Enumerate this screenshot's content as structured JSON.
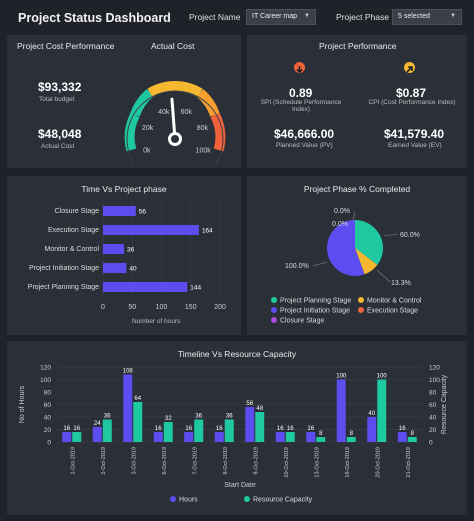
{
  "header": {
    "title": "Project Status Dashboard",
    "project_name_label": "Project Name",
    "project_name_value": "IT Career map",
    "project_phase_label": "Project Phase",
    "project_phase_value": "5 selected"
  },
  "cost_panel": {
    "title": "Project Cost Performance",
    "actual_cost_title": "Actual Cost",
    "total_budget_value": "$93,332",
    "total_budget_label": "Total budget",
    "actual_cost_value": "$48,048",
    "actual_cost_label": "Actual Cost",
    "gauge_ticks": [
      "0k",
      "20k",
      "40k",
      "60k",
      "80k",
      "100k"
    ],
    "gauge_fraction": 0.48
  },
  "performance_panel": {
    "title": "Project Performance",
    "spi_value": "0.89",
    "spi_label": "SPI (Schedule Performance Index)",
    "cpi_value": "$0.87",
    "cpi_label": "CPI (Cost Performance Index)",
    "pv_value": "$46,666.00",
    "pv_label": "Planned Value (PV)",
    "ev_value": "$41,579.40",
    "ev_label": "Earned Value (EV)"
  },
  "time_chart": {
    "title": "Time Vs Project phase",
    "xlabel": "Number of hours",
    "xticks": [
      "0",
      "50",
      "100",
      "150",
      "200"
    ]
  },
  "pie_chart": {
    "title": "Project Phase % Completed"
  },
  "timeline_chart": {
    "title": "Timeline Vs Resource Capacity",
    "ylabel_left": "No of Hours",
    "ylabel_right": "Resource Capacity",
    "xlabel": "Start Date",
    "yticks": [
      "0",
      "20",
      "40",
      "60",
      "80",
      "100",
      "120"
    ],
    "legend_hours": "Hours",
    "legend_capacity": "Resource Capacity"
  },
  "chart_data": [
    {
      "type": "bar",
      "orientation": "horizontal",
      "title": "Time Vs Project phase",
      "xlabel": "Number of hours",
      "xlim": [
        0,
        200
      ],
      "categories": [
        "Closure Stage",
        "Execution Stage",
        "Monitor & Control",
        "Project Initiation Stage",
        "Project Planning Stage"
      ],
      "values": [
        56,
        164,
        36,
        40,
        144
      ],
      "color": "#5b4df0"
    },
    {
      "type": "pie",
      "title": "Project Phase % Completed",
      "labels": [
        "Project Planning Stage",
        "Monitor & Control",
        "Project Initiation Stage",
        "Execution Stage",
        "Closure Stage"
      ],
      "values": [
        60.0,
        13.3,
        100.0,
        0.0,
        0.0
      ],
      "slice_labels": [
        "60.0%",
        "13.3%",
        "100.0%",
        "0.0%",
        "0.0%"
      ],
      "colors": [
        "#1ec8a0",
        "#f5b82e",
        "#5b4df0",
        "#f0623a",
        "#b04ae0"
      ]
    },
    {
      "type": "bar",
      "title": "Timeline Vs Resource Capacity",
      "xlabel": "Start Date",
      "ylabel": "No of Hours",
      "ylim": [
        0,
        120
      ],
      "categories": [
        "1-Oct-2019",
        "2-Oct-2019",
        "3-Oct-2019",
        "6-Oct-2019",
        "7-Oct-2019",
        "8-Oct-2019",
        "9-Oct-2019",
        "10-Oct-2019",
        "13-Oct-2019",
        "16-Oct-2019",
        "20-Oct-2019",
        "21-Oct-2019"
      ],
      "series": [
        {
          "name": "Hours",
          "color": "#5b4df0",
          "values": [
            16,
            24,
            108,
            16,
            16,
            16,
            56,
            16,
            16,
            100,
            40,
            16
          ]
        },
        {
          "name": "Resource Capacity",
          "color": "#1ec8a0",
          "values": [
            16,
            36,
            64,
            32,
            36,
            36,
            48,
            16,
            8,
            8,
            100,
            8
          ]
        }
      ],
      "grid": true,
      "legend": "bottom"
    }
  ]
}
